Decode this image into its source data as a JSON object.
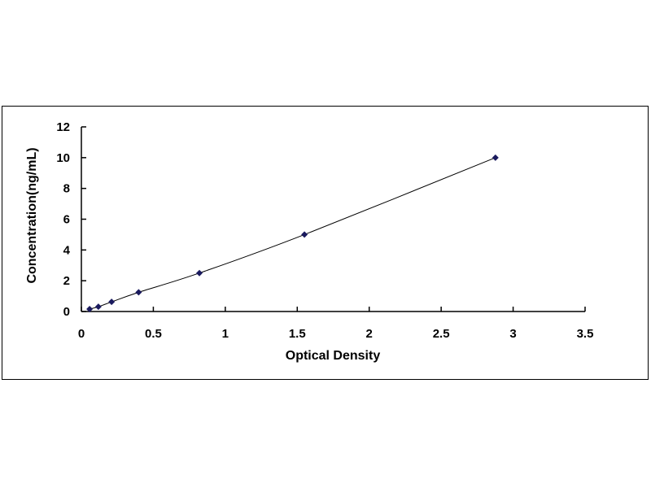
{
  "chart_data": {
    "type": "scatter",
    "title": "",
    "xlabel": "Optical Density",
    "ylabel": "Concentration(ng/mL)",
    "xlim": [
      0,
      3.5
    ],
    "ylim": [
      0,
      12
    ],
    "xticks": [
      "0",
      "0.5",
      "1",
      "1.5",
      "2",
      "2.5",
      "3",
      "3.5"
    ],
    "yticks": [
      "0",
      "2",
      "4",
      "6",
      "8",
      "10",
      "12"
    ],
    "grid": false,
    "legend": "none",
    "series": [
      {
        "x": [
          0.057,
          0.118,
          0.21,
          0.398,
          0.82,
          1.55,
          2.877
        ],
        "y": [
          0.156,
          0.312,
          0.625,
          1.25,
          2.5,
          5,
          10
        ],
        "marker": "diamond",
        "line": "smooth fitted curve",
        "color": "#1a1a5e"
      }
    ]
  }
}
